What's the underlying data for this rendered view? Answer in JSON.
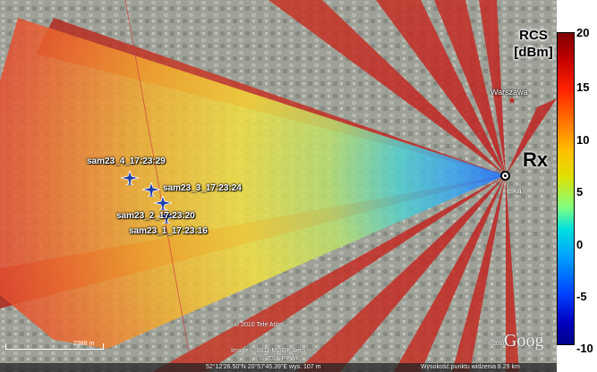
{
  "colorbar": {
    "title": "RCS",
    "unit": "[dBm]",
    "ticks": [
      "20",
      "15",
      "10",
      "5",
      "0",
      "-5",
      "-10"
    ],
    "range": [
      -10,
      20
    ],
    "colormap": [
      "#800000",
      "#ff2000",
      "#ffc000",
      "#80ff80",
      "#00e0e0",
      "#0040ff",
      "#00008a"
    ]
  },
  "receiver": {
    "label": "Rx",
    "site_label": "elka"
  },
  "city_label": "Warszawa",
  "aircraft": [
    {
      "label": "sam23_4_17:23:29"
    },
    {
      "label": "sam23_3_17:23:24"
    },
    {
      "label": "sam23_2_17:23:20"
    },
    {
      "label": "sam23_1_17:23:16"
    }
  ],
  "attribution": {
    "tele_atlas": "© 2010 Tele Atlas",
    "image": "Image © 2011 MGGP Aero",
    "ppwk": "© 2010 PPWK",
    "year_mark": "©2010",
    "google": "Goog",
    "scale": "2388 m"
  },
  "status_bar": {
    "coords": "52°12'26.50\"N   20°57'45.39\"E   wys. 107 m",
    "eye_alt": "Wysokość punktu widzenia   8.29 km"
  },
  "colors": {
    "accent_rx": "#000000",
    "plane": "#1e3fa8"
  }
}
